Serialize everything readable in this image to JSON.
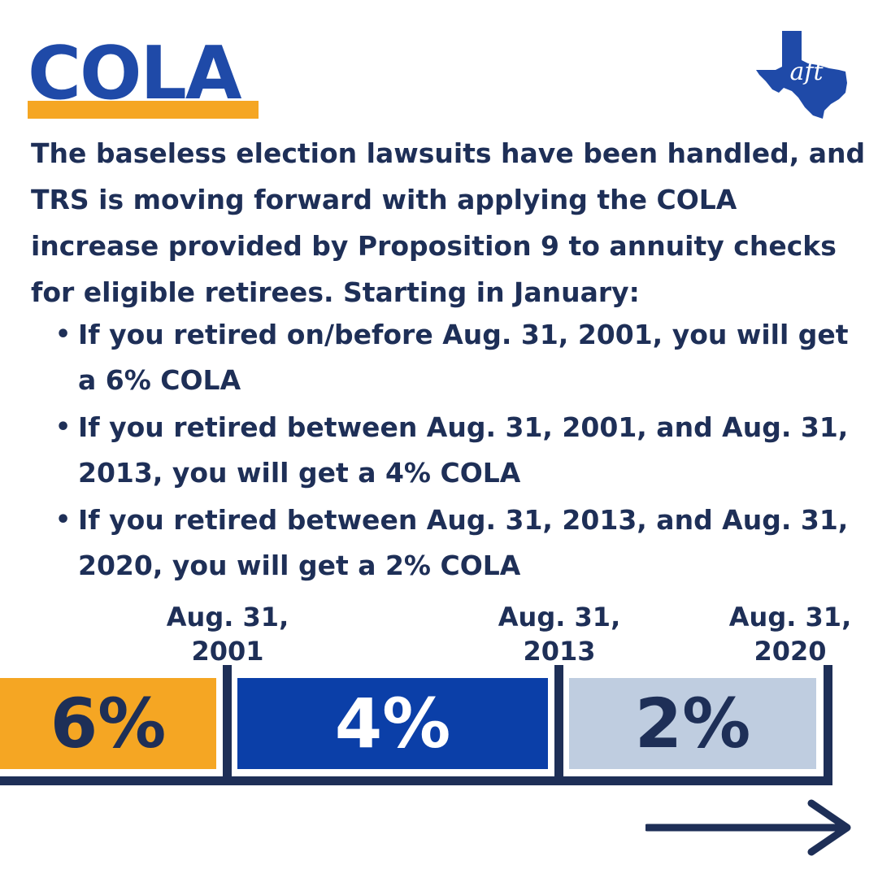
{
  "title": "COLA",
  "logo": {
    "icon": "texas-aft-logo-icon",
    "text": "aft"
  },
  "intro": "The baseless election lawsuits have been handled, and TRS is moving forward with applying the COLA increase provided by Proposition 9 to annuity checks for eligible retirees. Starting in January:",
  "bullets": [
    "If you retired on/before Aug. 31, 2001, you will get a 6% COLA",
    "If you retired between Aug. 31, 2001, and Aug. 31, 2013, you will get a 4% COLA",
    "If you retired between Aug. 31, 2013, and Aug. 31, 2020, you will get a 2% COLA"
  ],
  "timeline": {
    "dates": [
      {
        "line1": "Aug. 31,",
        "line2": "2001"
      },
      {
        "line1": "Aug. 31,",
        "line2": "2013"
      },
      {
        "line1": "Aug. 31,",
        "line2": "2020"
      }
    ],
    "segments": [
      {
        "label": "6%",
        "color": "#f5a623"
      },
      {
        "label": "4%",
        "color": "#0b3fa8"
      },
      {
        "label": "2%",
        "color": "#bfcde0"
      }
    ]
  },
  "colors": {
    "navy": "#1e2f57",
    "title_blue": "#1f4aa8",
    "accent_orange": "#f5a623"
  }
}
